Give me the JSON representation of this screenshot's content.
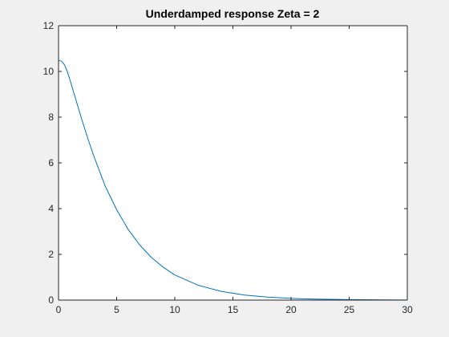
{
  "chart_data": {
    "type": "line",
    "title": "Underdamped response Zeta = 2",
    "xlabel": "",
    "ylabel": "",
    "xlim": [
      0,
      30
    ],
    "ylim": [
      0,
      12
    ],
    "x_ticks": [
      0,
      5,
      10,
      15,
      20,
      25,
      30
    ],
    "y_ticks": [
      0,
      2,
      4,
      6,
      8,
      10,
      12
    ],
    "grid": false,
    "colors": {
      "series": "#0072bd",
      "axes": "#262626",
      "plot_background": "#ffffff",
      "figure_background": "#f0f0f0"
    },
    "series": [
      {
        "x": [
          0,
          0.25,
          0.5,
          0.75,
          1,
          1.5,
          2,
          2.5,
          3,
          4,
          5,
          6,
          7,
          8,
          9,
          10,
          12,
          14,
          16,
          18,
          20,
          22,
          25,
          28,
          30
        ],
        "values": [
          10.48,
          10.45,
          10.3,
          10.0,
          9.6,
          8.75,
          7.9,
          7.1,
          6.35,
          5.0,
          3.95,
          3.08,
          2.4,
          1.86,
          1.44,
          1.1,
          0.65,
          0.38,
          0.22,
          0.13,
          0.075,
          0.044,
          0.02,
          0.009,
          0.005
        ]
      }
    ]
  }
}
